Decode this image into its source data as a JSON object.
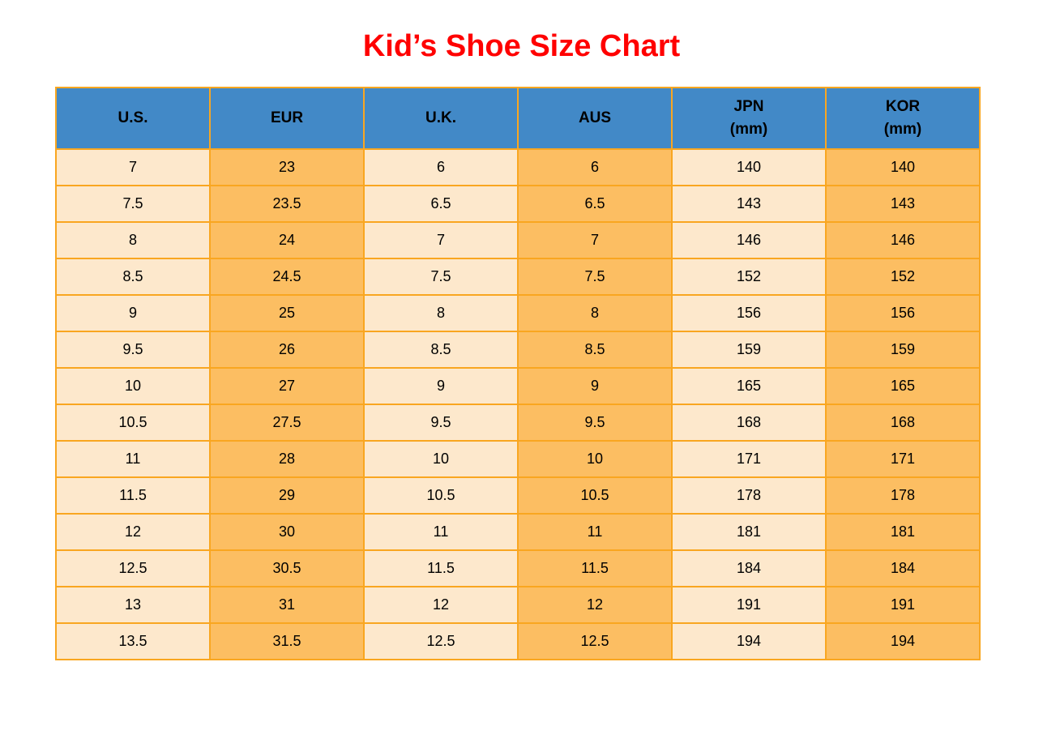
{
  "title": "Kid’s Shoe Size Chart",
  "colors": {
    "title_red": "#ff0000",
    "header_blue": "#4289c7",
    "cell_light": "#fde8cc",
    "cell_dark": "#fcbe62",
    "grid_orange": "#f9a620",
    "text_black": "#000000"
  },
  "chart_data": {
    "type": "table",
    "title": "Kid’s Shoe Size Chart",
    "columns": [
      {
        "label": "U.S.",
        "sublabel": ""
      },
      {
        "label": "EUR",
        "sublabel": ""
      },
      {
        "label": "U.K.",
        "sublabel": ""
      },
      {
        "label": "AUS",
        "sublabel": ""
      },
      {
        "label": "JPN",
        "sublabel": "(mm)"
      },
      {
        "label": "KOR",
        "sublabel": "(mm)"
      }
    ],
    "rows": [
      [
        "7",
        "23",
        "6",
        "6",
        "140",
        "140"
      ],
      [
        "7.5",
        "23.5",
        "6.5",
        "6.5",
        "143",
        "143"
      ],
      [
        "8",
        "24",
        "7",
        "7",
        "146",
        "146"
      ],
      [
        "8.5",
        "24.5",
        "7.5",
        "7.5",
        "152",
        "152"
      ],
      [
        "9",
        "25",
        "8",
        "8",
        "156",
        "156"
      ],
      [
        "9.5",
        "26",
        "8.5",
        "8.5",
        "159",
        "159"
      ],
      [
        "10",
        "27",
        "9",
        "9",
        "165",
        "165"
      ],
      [
        "10.5",
        "27.5",
        "9.5",
        "9.5",
        "168",
        "168"
      ],
      [
        "11",
        "28",
        "10",
        "10",
        "171",
        "171"
      ],
      [
        "11.5",
        "29",
        "10.5",
        "10.5",
        "178",
        "178"
      ],
      [
        "12",
        "30",
        "11",
        "11",
        "181",
        "181"
      ],
      [
        "12.5",
        "30.5",
        "11.5",
        "11.5",
        "184",
        "184"
      ],
      [
        "13",
        "31",
        "12",
        "12",
        "191",
        "191"
      ],
      [
        "13.5",
        "31.5",
        "12.5",
        "12.5",
        "194",
        "194"
      ]
    ]
  }
}
